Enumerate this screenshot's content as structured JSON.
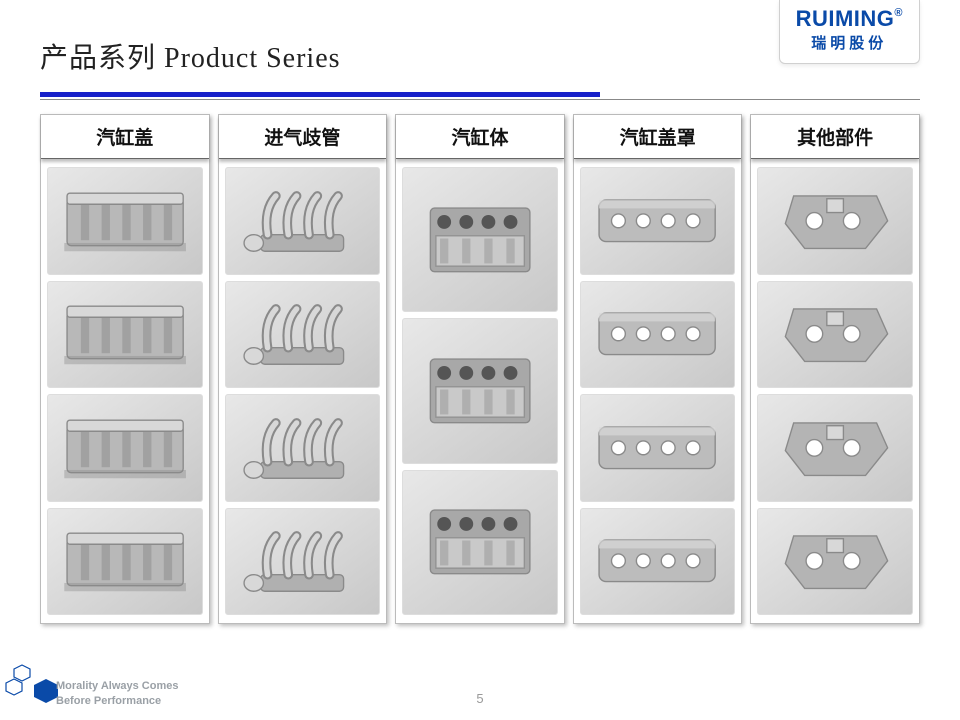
{
  "header": {
    "title": "产品系列 Product Series",
    "logo_main": "RUIMING",
    "logo_reg": "®",
    "logo_sub": "瑞明股份"
  },
  "columns": [
    {
      "label": "汽缸盖",
      "items": 4,
      "part_color": "#b8b8b8"
    },
    {
      "label": "进气歧管",
      "items": 4,
      "part_color": "#b0b0b0"
    },
    {
      "label": "汽缸体",
      "items": 3,
      "part_color": "#a8a8a8"
    },
    {
      "label": "汽缸盖罩",
      "items": 4,
      "part_color": "#bcbcbc"
    },
    {
      "label": "其他部件",
      "items": 4,
      "part_color": "#b4b4b4"
    }
  ],
  "footer": {
    "tagline_l1": "Morality Always Comes",
    "tagline_l2": "Before Performance",
    "page_number": "5"
  },
  "style": {
    "accent_blue": "#0a4aa8",
    "divider_blue": "#1720c9",
    "hex_stroke": "#0a4aa8"
  }
}
